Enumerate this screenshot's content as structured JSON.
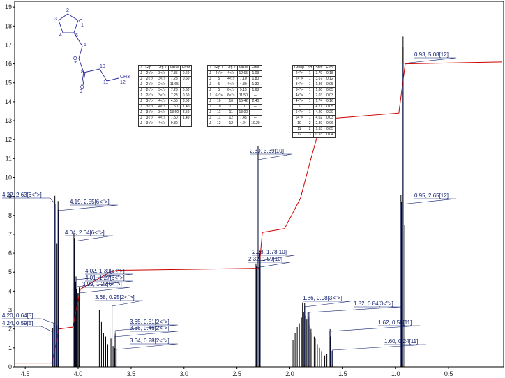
{
  "chart_data": {
    "type": "line",
    "xlabel": "",
    "ylabel": "",
    "xlim": [
      4.6,
      -0.02
    ],
    "ylim": [
      0,
      19.3
    ],
    "x_ticks": [
      4.5,
      4.0,
      3.5,
      3.0,
      2.5,
      2.0,
      1.5,
      1.0,
      0.5
    ],
    "y_ticks": [
      0,
      1,
      2,
      3,
      4,
      5,
      6,
      7,
      8,
      9,
      10,
      11,
      12,
      13,
      14,
      15,
      16,
      17,
      18,
      19
    ],
    "peaks": [
      {
        "label": "4.24, 0.59[5]",
        "ppm": 4.24,
        "height": 0.59
      },
      {
        "label": "4.22, 2.63[6<\">]",
        "ppm": 4.22,
        "height": 2.63
      },
      {
        "label": "4.20, 0.64[5]",
        "ppm": 4.2,
        "height": 0.64
      },
      {
        "label": "4.19, 2.55[6<\">]",
        "ppm": 4.19,
        "height": 2.55
      },
      {
        "label": "4.04, 2.04[6<\">]",
        "ppm": 4.04,
        "height": 2.04
      },
      {
        "label": "4.02, 1.39[6<\">]",
        "ppm": 4.02,
        "height": 1.39
      },
      {
        "label": "4.01, 1.27[6<\">]",
        "ppm": 4.01,
        "height": 1.27
      },
      {
        "label": "3.99, 1.22[6<\">]",
        "ppm": 3.99,
        "height": 1.22
      },
      {
        "label": "3.68, 0.95[2<\">]",
        "ppm": 3.68,
        "height": 0.95
      },
      {
        "label": "3.66, 0.46[2<\">]",
        "ppm": 3.66,
        "height": 0.46
      },
      {
        "label": "3.65, 0.51[2<\">]",
        "ppm": 3.65,
        "height": 0.51
      },
      {
        "label": "3.64, 0.28[2<\">]",
        "ppm": 3.64,
        "height": 0.28
      },
      {
        "label": "2.32, 1.59[10]",
        "ppm": 2.32,
        "height": 1.59
      },
      {
        "label": "2.30, 3.39[10]",
        "ppm": 2.3,
        "height": 3.39
      },
      {
        "label": "2.28, 1.78[10]",
        "ppm": 2.28,
        "height": 1.78
      },
      {
        "label": "1.86, 0.98[3<\">]",
        "ppm": 1.86,
        "height": 0.98
      },
      {
        "label": "1.82, 0.84[3<\">]",
        "ppm": 1.82,
        "height": 0.84
      },
      {
        "label": "1.62, 0.58[11]",
        "ppm": 1.62,
        "height": 0.58
      },
      {
        "label": "1.60, 0.24[11]",
        "ppm": 1.6,
        "height": 0.24
      },
      {
        "label": "0.95, 2.65[12]",
        "ppm": 0.95,
        "height": 2.65
      },
      {
        "label": "0.93, 5.08[12]",
        "ppm": 0.93,
        "height": 5.08
      }
    ],
    "integral": {
      "x": [
        4.6,
        4.25,
        4.18,
        4.05,
        3.98,
        3.7,
        3.62,
        2.34,
        2.29,
        2.26,
        2.05,
        1.9,
        1.8,
        1.7,
        1.64,
        0.97,
        0.91,
        0.0
      ],
      "y": [
        0.2,
        0.2,
        2.0,
        2.1,
        4.1,
        5.0,
        5.1,
        5.2,
        5.2,
        7.1,
        7.3,
        8.9,
        11.0,
        13.0,
        13.1,
        13.4,
        16.0,
        16.1
      ]
    }
  },
  "molecule": {
    "atoms": [
      "1",
      "2",
      "3",
      "4",
      "5",
      "6",
      "7",
      "8",
      "9",
      "10",
      "11",
      "12"
    ],
    "ring_oxygen": "O",
    "ether_oxygen": "O",
    "carbonyl_oxygen": "O",
    "methyl": "CH3"
  },
  "tables": {
    "t1": {
      "headers": [
        "J",
        "Grp 1",
        "Grp 2",
        "Value",
        "Error"
      ],
      "rows": [
        [
          "J",
          "2<\">",
          "3<\">",
          "7.35",
          "0.60"
        ],
        [
          "J",
          "2<\">",
          "3<\">",
          "7.28",
          "0.60"
        ],
        [
          "J",
          "2<\">",
          "2<\">",
          "11.65",
          "---"
        ],
        [
          "J",
          "2<\">",
          "3<\">",
          "7.28",
          "0.60"
        ],
        [
          "J",
          "2<\">",
          "3<\">",
          "7.28",
          "0.60"
        ],
        [
          "J",
          "3<\">",
          "4<\">",
          "4.55",
          "3.50"
        ],
        [
          "J",
          "3<\">",
          "4<\">",
          "7.50",
          "1.40"
        ],
        [
          "J",
          "3<\">",
          "3<\">",
          "13.60",
          "3.50"
        ],
        [
          "J",
          "3<\">",
          "4<\">",
          "7.50",
          "1.40"
        ],
        [
          "J",
          "3<\">",
          "4<\">",
          "9.80",
          "---"
        ]
      ]
    },
    "t2": {
      "headers": [
        "J",
        "Grp 1",
        "Grp 2",
        "Value",
        "Error"
      ],
      "rows": [
        [
          "J",
          "4<\">",
          "4<\">",
          "12.65",
          "1.03"
        ],
        [
          "J",
          "5",
          "4<\">",
          "7.10",
          "1.80"
        ],
        [
          "J",
          "5",
          "4<\">",
          "4.80",
          "1.30"
        ],
        [
          "J",
          "5",
          "6<\">",
          "9.15",
          "1.63"
        ],
        [
          "J",
          "6<\">",
          "6<\">",
          "11.50",
          "---"
        ],
        [
          "J",
          "10",
          "10",
          "15.42",
          "2.40"
        ],
        [
          "J",
          "10",
          "11",
          "7.01",
          "---"
        ],
        [
          "J",
          "11",
          "11",
          "13.00",
          "---"
        ],
        [
          "J",
          "11",
          "12",
          "7.45",
          "---"
        ],
        [
          "J",
          "12",
          "12",
          "4.24",
          "10.20"
        ]
      ]
    },
    "t3": {
      "headers": [
        "Group",
        "nH",
        "Shift",
        "Error"
      ],
      "rows": [
        [
          "2<\">",
          "1",
          "3.79",
          "0.18"
        ],
        [
          "2<\">",
          "1",
          "3.67",
          "0.12"
        ],
        [
          "3<\">",
          "1",
          "1.86",
          "0.05"
        ],
        [
          "3<\">",
          "1",
          "1.80",
          "0.05"
        ],
        [
          "4<\">",
          "1",
          "2.03",
          "0.03"
        ],
        [
          "4<\">",
          "1",
          "1.74",
          "0.16"
        ],
        [
          "5",
          "1",
          "4.21",
          "0.05"
        ],
        [
          "6<\">",
          "1",
          "4.20",
          "0.20"
        ],
        [
          "6<\">",
          "1",
          "4.02",
          "0.03"
        ],
        [
          "10",
          "2",
          "2.30",
          "0.06"
        ],
        [
          "11",
          "2",
          "1.63",
          "0.05"
        ],
        [
          "12",
          "3",
          "0.93",
          "0.04"
        ]
      ]
    }
  },
  "colors": {
    "integral": "#cc0000",
    "spectrum": "#000000",
    "label_text": "#0a1a6a"
  }
}
